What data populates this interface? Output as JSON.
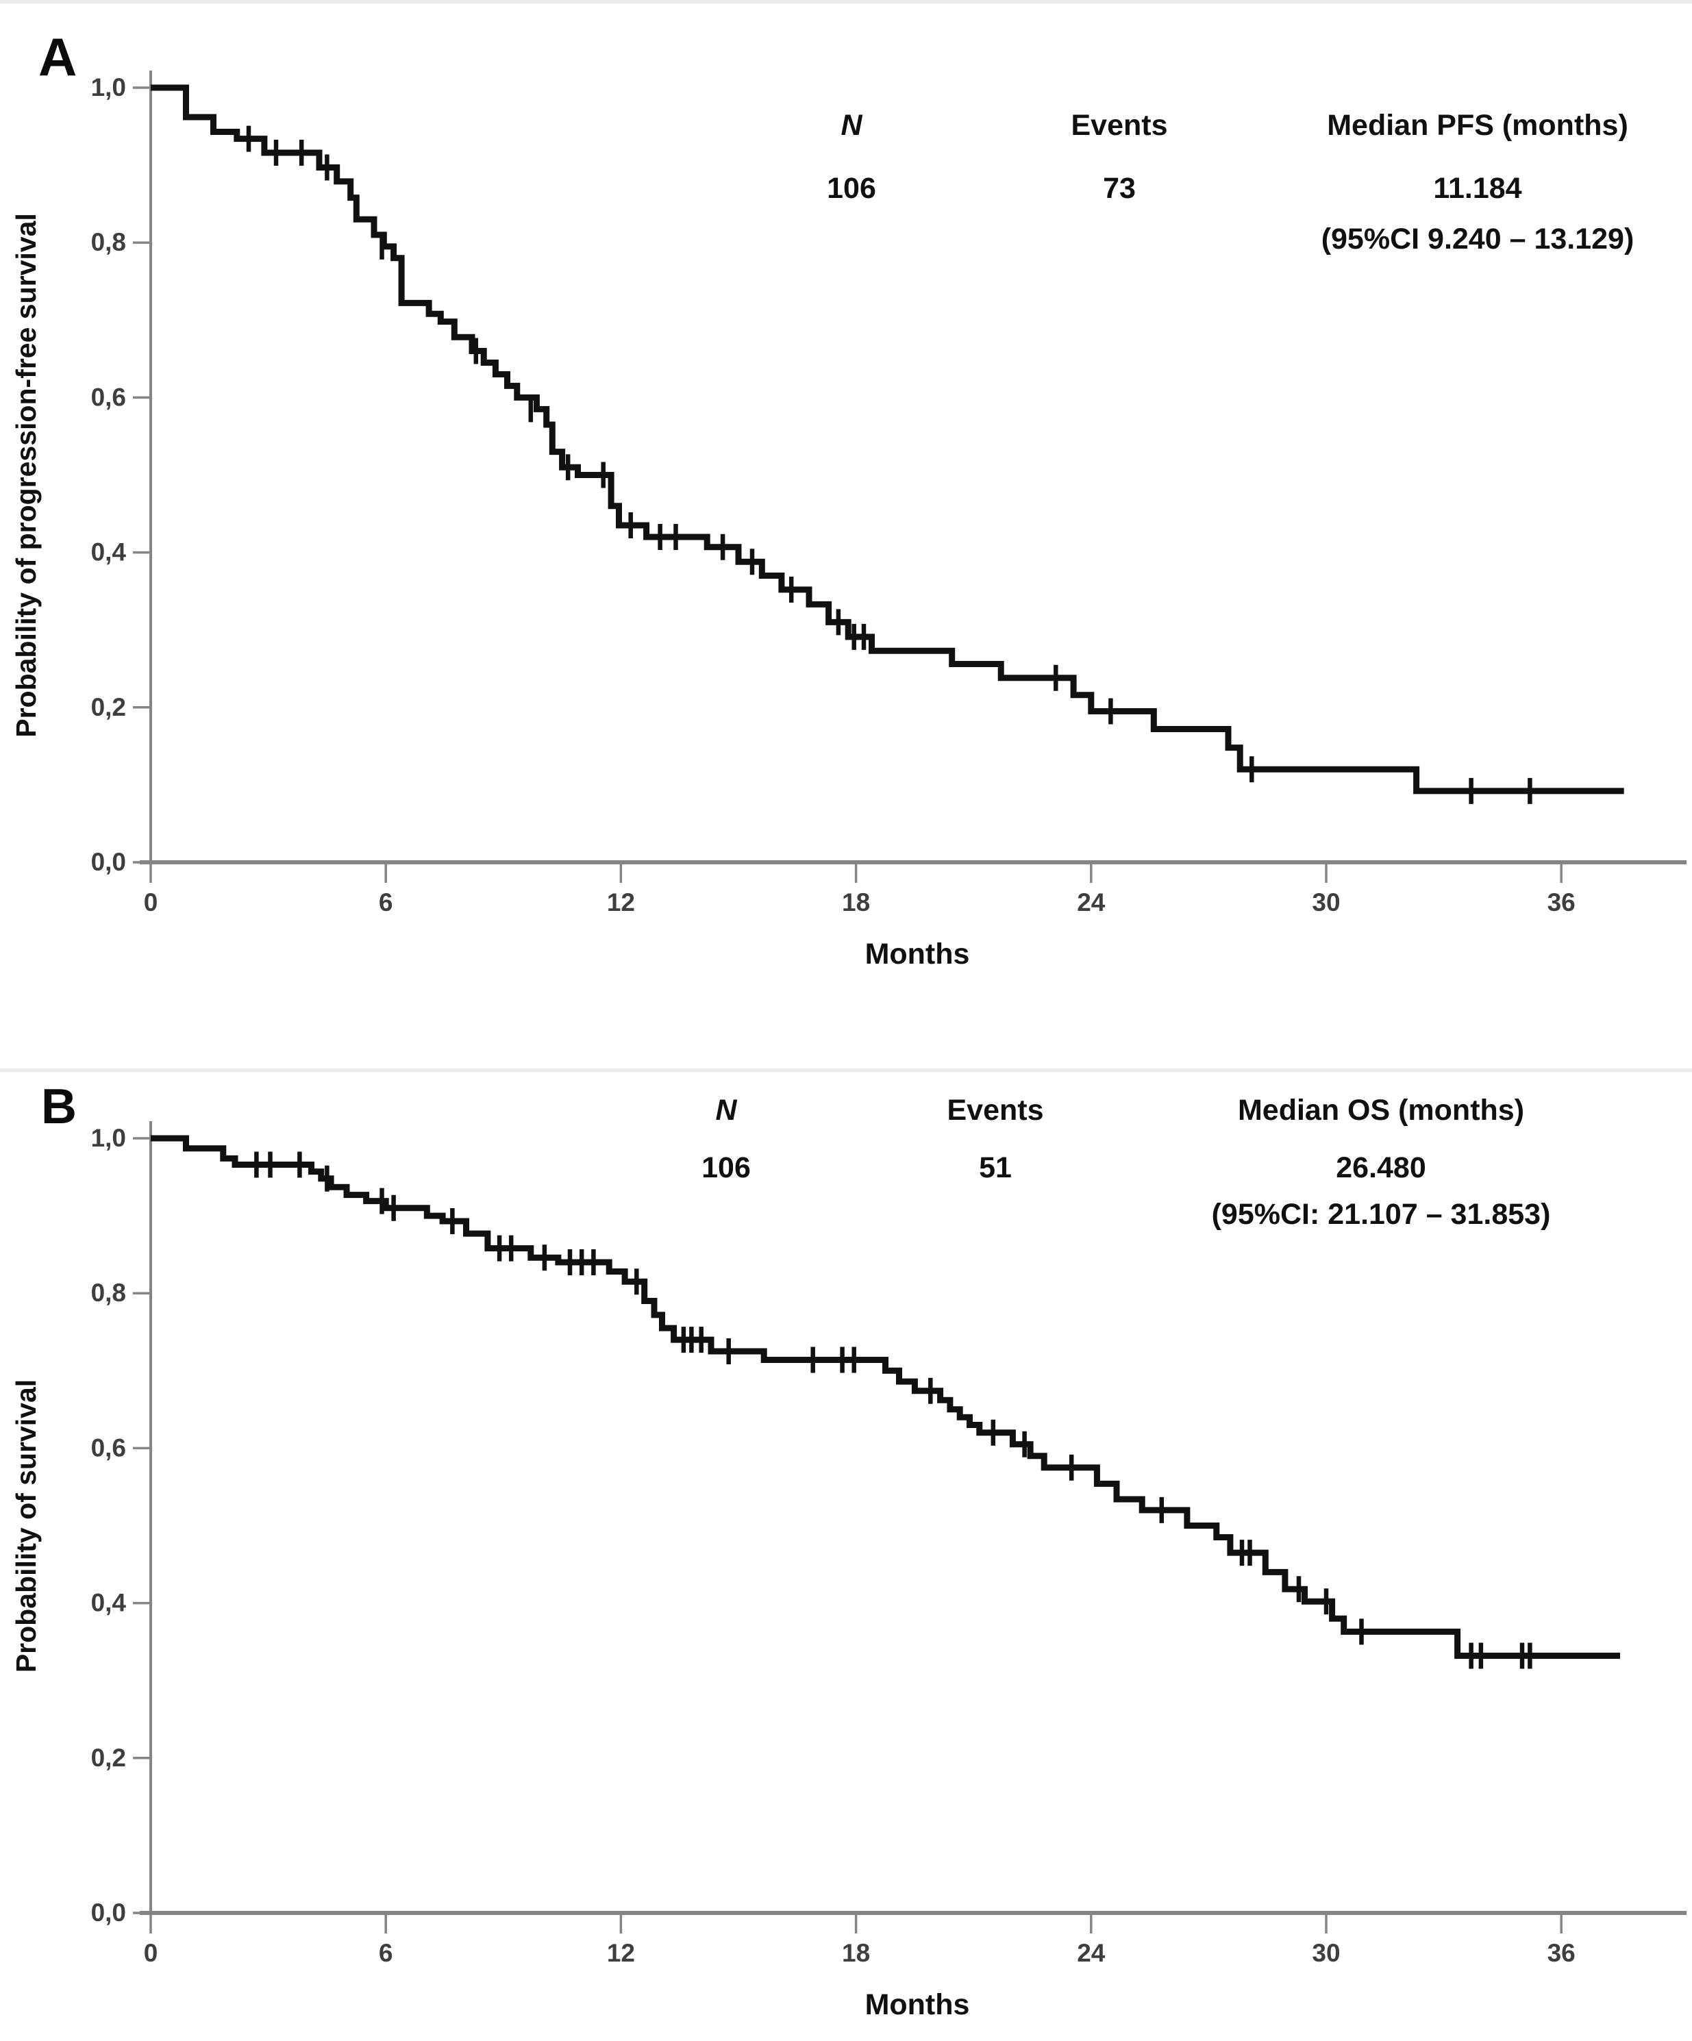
{
  "figure": {
    "background": "#ffffff",
    "curve_color": "#111111",
    "axis_color": "#858585",
    "tick_label_color": "#3e3e3e",
    "text_color": "#101010"
  },
  "panels": [
    {
      "label": "A",
      "y_axis_title": "Probability of progression-free survival",
      "x_axis_title": "Months",
      "y_tick_labels": [
        "0,0",
        "0,2",
        "0,4",
        "0,6",
        "0,8",
        "1,0"
      ],
      "x_tick_labels": [
        "0",
        "6",
        "12",
        "18",
        "24",
        "30",
        "36"
      ],
      "stats": {
        "n_header": "N",
        "events_header": "Events",
        "median_header": "Median PFS (months)",
        "n": "106",
        "events": "73",
        "median": "11.184",
        "ci": "(95%CI 9.240 – 13.129)"
      }
    },
    {
      "label": "B",
      "y_axis_title": "Probability of survival",
      "x_axis_title": "Months",
      "y_tick_labels": [
        "0,0",
        "0,2",
        "0,4",
        "0,6",
        "0,8",
        "1,0"
      ],
      "x_tick_labels": [
        "0",
        "6",
        "12",
        "18",
        "24",
        "30",
        "36"
      ],
      "stats": {
        "n_header": "N",
        "events_header": "Events",
        "median_header": "Median OS (months)",
        "n": "106",
        "events": "51",
        "median": "26.480",
        "ci": "(95%CI: 21.107 – 31.853)"
      }
    }
  ],
  "chart_data": [
    {
      "type": "line",
      "subtype": "kaplan_meier_step",
      "title": "A",
      "xlabel": "Months",
      "ylabel": "Probability of progression-free survival",
      "xlim": [
        0,
        39.3
      ],
      "ylim": [
        0.0,
        1.0
      ],
      "x_ticks": [
        0,
        6,
        12,
        18,
        24,
        30,
        36
      ],
      "y_ticks": [
        0.0,
        0.2,
        0.4,
        0.6,
        0.8,
        1.0
      ],
      "grid": false,
      "legend": "none",
      "n": 106,
      "events": 73,
      "median_months": 11.184,
      "ci_95": "9.240 – 13.129",
      "start": [
        0,
        1.0
      ],
      "end_month": 37.6,
      "steps": [
        [
          0.9,
          0.962
        ],
        [
          1.6,
          0.943
        ],
        [
          2.2,
          0.934
        ],
        [
          2.9,
          0.916
        ],
        [
          4.3,
          0.897
        ],
        [
          4.75,
          0.879
        ],
        [
          5.1,
          0.858
        ],
        [
          5.25,
          0.83
        ],
        [
          5.7,
          0.81
        ],
        [
          5.95,
          0.795
        ],
        [
          6.2,
          0.78
        ],
        [
          6.4,
          0.722
        ],
        [
          7.1,
          0.708
        ],
        [
          7.4,
          0.698
        ],
        [
          7.75,
          0.678
        ],
        [
          8.2,
          0.66
        ],
        [
          8.5,
          0.645
        ],
        [
          8.8,
          0.63
        ],
        [
          9.1,
          0.615
        ],
        [
          9.35,
          0.6
        ],
        [
          9.85,
          0.585
        ],
        [
          10.1,
          0.565
        ],
        [
          10.25,
          0.53
        ],
        [
          10.5,
          0.51
        ],
        [
          10.9,
          0.5
        ],
        [
          11.75,
          0.46
        ],
        [
          11.95,
          0.435
        ],
        [
          12.65,
          0.42
        ],
        [
          14.2,
          0.407
        ],
        [
          15.0,
          0.388
        ],
        [
          15.6,
          0.37
        ],
        [
          16.1,
          0.352
        ],
        [
          16.8,
          0.333
        ],
        [
          17.3,
          0.31
        ],
        [
          17.8,
          0.291
        ],
        [
          18.4,
          0.273
        ],
        [
          20.45,
          0.256
        ],
        [
          21.7,
          0.238
        ],
        [
          23.55,
          0.216
        ],
        [
          24.0,
          0.195
        ],
        [
          25.6,
          0.172
        ],
        [
          27.5,
          0.148
        ],
        [
          27.8,
          0.12
        ],
        [
          32.3,
          0.092
        ]
      ],
      "censor_marks": [
        [
          2.5,
          0.934
        ],
        [
          3.2,
          0.916
        ],
        [
          3.85,
          0.916
        ],
        [
          4.5,
          0.897
        ],
        [
          5.9,
          0.795
        ],
        [
          8.3,
          0.66
        ],
        [
          9.7,
          0.585
        ],
        [
          10.65,
          0.51
        ],
        [
          11.55,
          0.5
        ],
        [
          12.25,
          0.435
        ],
        [
          13.0,
          0.42
        ],
        [
          13.4,
          0.42
        ],
        [
          14.6,
          0.407
        ],
        [
          15.35,
          0.388
        ],
        [
          16.35,
          0.352
        ],
        [
          17.55,
          0.31
        ],
        [
          17.95,
          0.291
        ],
        [
          18.2,
          0.291
        ],
        [
          23.1,
          0.238
        ],
        [
          24.5,
          0.195
        ],
        [
          28.1,
          0.12
        ],
        [
          33.7,
          0.092
        ],
        [
          35.2,
          0.092
        ]
      ]
    },
    {
      "type": "line",
      "subtype": "kaplan_meier_step",
      "title": "B",
      "xlabel": "Months",
      "ylabel": "Probability of survival",
      "xlim": [
        0,
        39.3
      ],
      "ylim": [
        0.0,
        1.0
      ],
      "x_ticks": [
        0,
        6,
        12,
        18,
        24,
        30,
        36
      ],
      "y_ticks": [
        0.0,
        0.2,
        0.4,
        0.6,
        0.8,
        1.0
      ],
      "grid": false,
      "legend": "none",
      "n": 106,
      "events": 51,
      "median_months": 26.48,
      "ci_95": "21.107 – 31.853",
      "start": [
        0,
        1.0
      ],
      "end_month": 37.5,
      "steps": [
        [
          0.9,
          0.987
        ],
        [
          1.85,
          0.974
        ],
        [
          2.15,
          0.966
        ],
        [
          4.1,
          0.957
        ],
        [
          4.35,
          0.948
        ],
        [
          4.6,
          0.937
        ],
        [
          5.0,
          0.927
        ],
        [
          5.5,
          0.919
        ],
        [
          6.0,
          0.91
        ],
        [
          7.05,
          0.9
        ],
        [
          7.45,
          0.893
        ],
        [
          8.05,
          0.877
        ],
        [
          8.6,
          0.858
        ],
        [
          9.7,
          0.846
        ],
        [
          10.4,
          0.84
        ],
        [
          11.7,
          0.828
        ],
        [
          12.1,
          0.815
        ],
        [
          12.6,
          0.79
        ],
        [
          12.85,
          0.772
        ],
        [
          13.05,
          0.755
        ],
        [
          13.35,
          0.74
        ],
        [
          14.3,
          0.725
        ],
        [
          15.65,
          0.714
        ],
        [
          18.75,
          0.7
        ],
        [
          19.1,
          0.686
        ],
        [
          19.5,
          0.674
        ],
        [
          20.15,
          0.662
        ],
        [
          20.4,
          0.65
        ],
        [
          20.65,
          0.64
        ],
        [
          20.9,
          0.63
        ],
        [
          21.15,
          0.62
        ],
        [
          22.0,
          0.605
        ],
        [
          22.45,
          0.59
        ],
        [
          22.8,
          0.575
        ],
        [
          24.15,
          0.554
        ],
        [
          24.65,
          0.534
        ],
        [
          25.3,
          0.52
        ],
        [
          26.45,
          0.5
        ],
        [
          27.2,
          0.485
        ],
        [
          27.55,
          0.465
        ],
        [
          28.45,
          0.44
        ],
        [
          28.95,
          0.418
        ],
        [
          29.45,
          0.402
        ],
        [
          30.15,
          0.38
        ],
        [
          30.45,
          0.363
        ],
        [
          33.35,
          0.332
        ]
      ],
      "censor_marks": [
        [
          2.7,
          0.966
        ],
        [
          3.05,
          0.966
        ],
        [
          3.8,
          0.966
        ],
        [
          4.5,
          0.948
        ],
        [
          5.9,
          0.919
        ],
        [
          6.2,
          0.91
        ],
        [
          7.7,
          0.893
        ],
        [
          8.9,
          0.858
        ],
        [
          9.2,
          0.858
        ],
        [
          10.05,
          0.846
        ],
        [
          10.7,
          0.84
        ],
        [
          11.0,
          0.84
        ],
        [
          11.3,
          0.84
        ],
        [
          12.4,
          0.815
        ],
        [
          13.6,
          0.74
        ],
        [
          13.8,
          0.74
        ],
        [
          14.05,
          0.74
        ],
        [
          14.75,
          0.725
        ],
        [
          16.9,
          0.714
        ],
        [
          17.65,
          0.714
        ],
        [
          17.95,
          0.714
        ],
        [
          19.9,
          0.674
        ],
        [
          21.5,
          0.62
        ],
        [
          22.3,
          0.605
        ],
        [
          23.5,
          0.575
        ],
        [
          25.8,
          0.52
        ],
        [
          27.85,
          0.465
        ],
        [
          28.05,
          0.465
        ],
        [
          29.3,
          0.418
        ],
        [
          30.0,
          0.402
        ],
        [
          30.9,
          0.363
        ],
        [
          33.7,
          0.332
        ],
        [
          33.95,
          0.332
        ],
        [
          35.0,
          0.332
        ],
        [
          35.2,
          0.332
        ]
      ]
    }
  ]
}
